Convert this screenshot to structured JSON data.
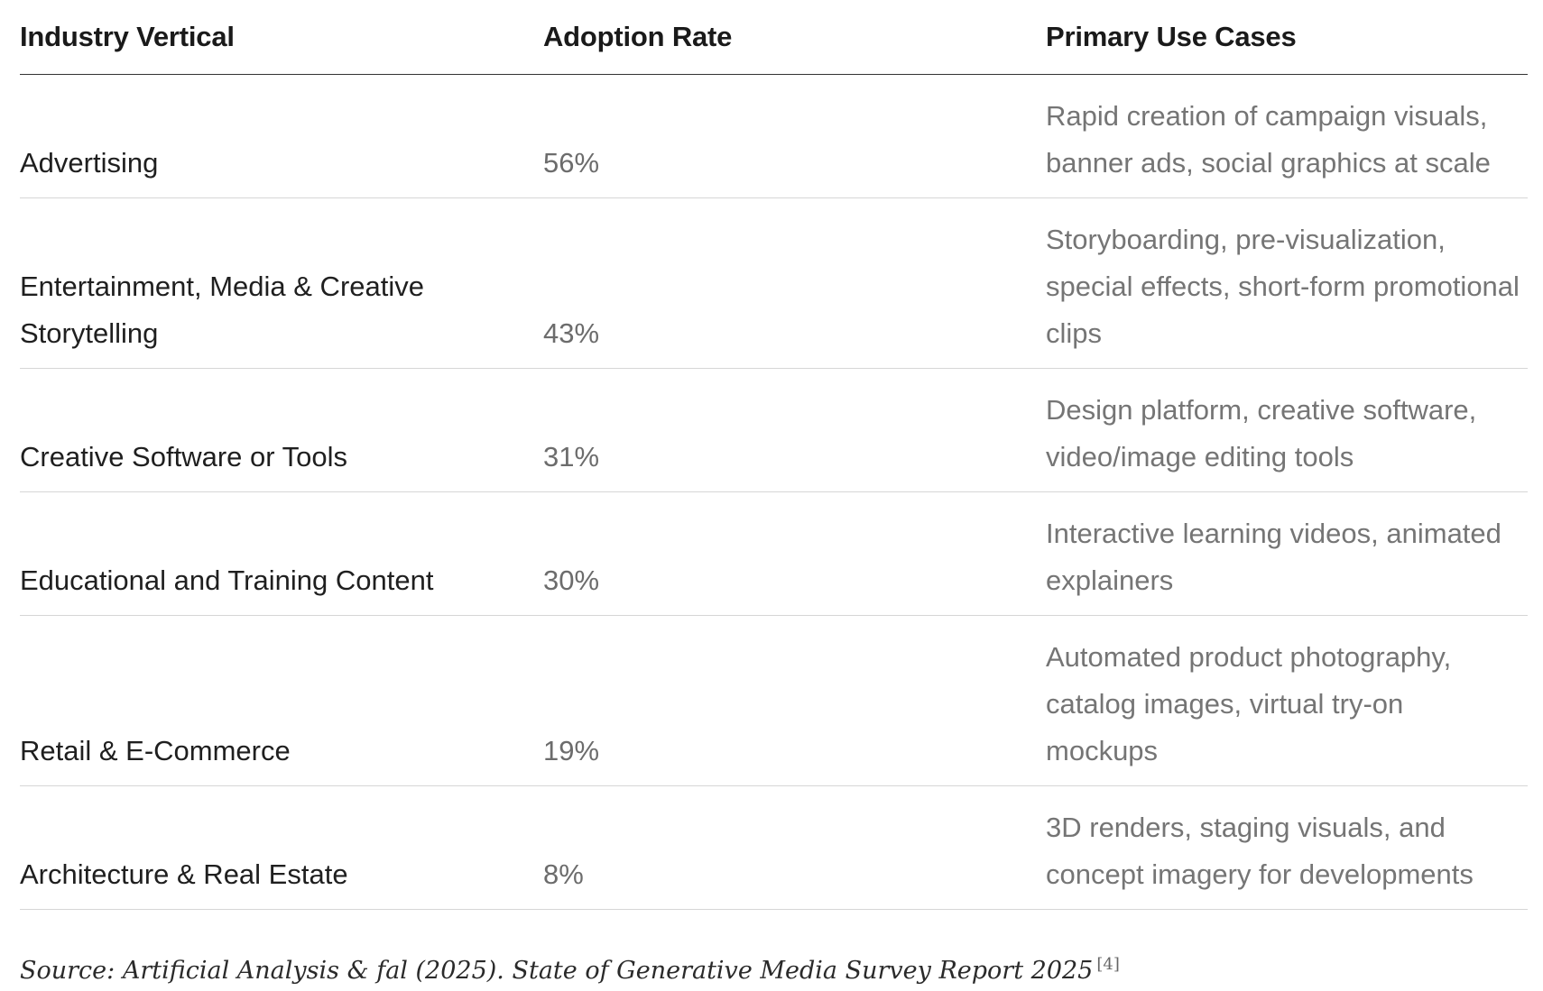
{
  "headers": {
    "industry": "Industry Vertical",
    "adoption": "Adoption Rate",
    "uses": "Primary Use Cases"
  },
  "rows": [
    {
      "industry": "Advertising",
      "adoption": "56%",
      "uses": "Rapid creation of campaign visuals, banner ads, social graphics at scale"
    },
    {
      "industry": "Entertainment, Media & Creative Storytelling",
      "adoption": "43%",
      "uses": "Storyboarding, pre-visualization, special effects, short-form promotional clips"
    },
    {
      "industry": "Creative Software or Tools",
      "adoption": "31%",
      "uses": "Design platform, creative software, video/image editing tools"
    },
    {
      "industry": "Educational and Training Content",
      "adoption": "30%",
      "uses": "Interactive learning videos, animated explainers"
    },
    {
      "industry": "Retail & E-Commerce",
      "adoption": "19%",
      "uses": "Automated product photography, catalog images, virtual try-on mockups"
    },
    {
      "industry": "Architecture & Real Estate",
      "adoption": "8%",
      "uses": "3D renders, staging visuals, and concept imagery for developments"
    }
  ],
  "source": {
    "text": "Source: Artificial Analysis & fal (2025). State of Generative Media Survey Report 2025",
    "ref": "[4]"
  }
}
